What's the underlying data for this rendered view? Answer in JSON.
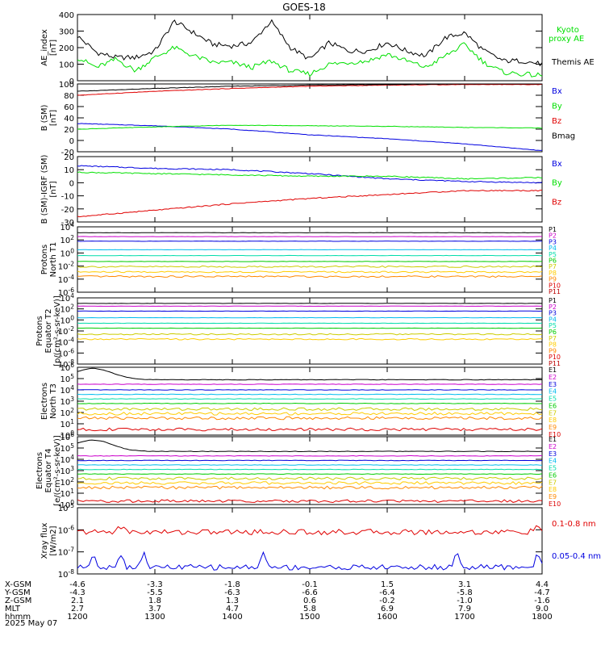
{
  "title": "GOES-18",
  "colors": {
    "black": "#000000",
    "green": "#00e000",
    "blue": "#0000e0",
    "red": "#e00000"
  },
  "xaxis": {
    "rows": [
      {
        "label": "X-GSM",
        "values": [
          "-4.6",
          "-3.3",
          "-1.8",
          "-0.1",
          "1.5",
          "3.1",
          "4.4"
        ]
      },
      {
        "label": "Y-GSM",
        "values": [
          "-4.3",
          "-5.5",
          "-6.3",
          "-6.6",
          "-6.4",
          "-5.8",
          "-4.7"
        ]
      },
      {
        "label": "Z-GSM",
        "values": [
          "2.1",
          "1.8",
          "1.3",
          "0.6",
          "-0.2",
          "-1.0",
          "-1.6"
        ]
      },
      {
        "label": "MLT",
        "values": [
          "2.7",
          "3.7",
          "4.7",
          "5.8",
          "6.9",
          "7.9",
          "9.0"
        ]
      },
      {
        "label": "hhmm",
        "values": [
          "1200",
          "1300",
          "1400",
          "1500",
          "1600",
          "1700",
          "1800"
        ]
      }
    ],
    "date": "2025 May 07"
  },
  "chart_data": [
    {
      "id": "ae",
      "type": "line",
      "ylabel": [
        "AE_index",
        "[nT]"
      ],
      "ylim": [
        0,
        400
      ],
      "yticks": [
        "0",
        "100",
        "200",
        "300",
        "400"
      ],
      "x": [
        12.0,
        12.25,
        12.5,
        12.75,
        13.0,
        13.25,
        13.5,
        13.75,
        14.0,
        14.25,
        14.5,
        14.75,
        15.0,
        15.25,
        15.5,
        15.75,
        16.0,
        16.25,
        16.5,
        16.75,
        17.0,
        17.25,
        17.5,
        17.75,
        18.0
      ],
      "series": [
        {
          "name": "Themis AE",
          "color": "black",
          "values": [
            270,
            170,
            140,
            140,
            180,
            360,
            290,
            220,
            210,
            230,
            360,
            200,
            130,
            230,
            180,
            180,
            230,
            180,
            150,
            260,
            290,
            180,
            120,
            120,
            100
          ]
        },
        {
          "name": "Kyoto proxy AE",
          "color": "green",
          "values": [
            140,
            80,
            130,
            60,
            140,
            200,
            150,
            110,
            110,
            80,
            120,
            60,
            40,
            100,
            110,
            120,
            160,
            120,
            80,
            150,
            220,
            110,
            50,
            40,
            30
          ]
        }
      ]
    },
    {
      "id": "bsm",
      "type": "line",
      "ylabel": [
        "B (SM)",
        "[nT]"
      ],
      "ylim": [
        -20,
        100
      ],
      "yticks": [
        "-20",
        "0",
        "20",
        "40",
        "60",
        "80",
        "100"
      ],
      "x": [
        12,
        13,
        14,
        15,
        16,
        17,
        18
      ],
      "series": [
        {
          "name": "Bx",
          "color": "blue",
          "values": [
            30,
            26,
            20,
            10,
            3,
            -6,
            -18
          ]
        },
        {
          "name": "By",
          "color": "green",
          "values": [
            20,
            24,
            27,
            26,
            25,
            23,
            22
          ]
        },
        {
          "name": "Bz",
          "color": "red",
          "values": [
            80,
            87,
            92,
            96,
            98,
            99,
            99
          ]
        },
        {
          "name": "Bmag",
          "color": "black",
          "values": [
            87,
            92,
            96,
            98,
            99,
            100,
            102
          ]
        }
      ]
    },
    {
      "id": "bigrf",
      "type": "line",
      "ylabel": [
        "B (SM)-IGRF (SM)",
        "[nT]"
      ],
      "ylim": [
        -30,
        20
      ],
      "yticks": [
        "-30",
        "-20",
        "-10",
        "0",
        "10",
        "20"
      ],
      "x": [
        12,
        13,
        14,
        15,
        16,
        17,
        18
      ],
      "series": [
        {
          "name": "Bx",
          "color": "blue",
          "values": [
            13,
            11,
            10,
            7,
            3,
            1,
            0
          ]
        },
        {
          "name": "By",
          "color": "green",
          "values": [
            8,
            7,
            6,
            5,
            5,
            3,
            4
          ]
        },
        {
          "name": "Bz",
          "color": "red",
          "values": [
            -26,
            -21,
            -16,
            -12,
            -9,
            -6,
            -6
          ]
        }
      ]
    },
    {
      "id": "pn",
      "type": "line",
      "ylabel": [
        "Protons",
        "North T1"
      ],
      "log": true,
      "ylim": [
        -6,
        4
      ],
      "yticks": [
        "10<sup>-6</sup>",
        "10<sup>-4</sup>",
        "10<sup>-2</sup>",
        "10<sup>0</sup>",
        "10<sup>2</sup>",
        "10<sup>4</sup>"
      ],
      "series": [
        {
          "name": "P1",
          "color": "#000000",
          "log10": 3.1
        },
        {
          "name": "P2",
          "color": "#cc00cc",
          "log10": 2.5
        },
        {
          "name": "P3",
          "color": "#0000dd",
          "log10": 1.8
        },
        {
          "name": "P4",
          "color": "#00bbee",
          "log10": 0.5
        },
        {
          "name": "P5",
          "color": "#00ddaa",
          "log10": -0.4
        },
        {
          "name": "P6",
          "color": "#00cc00",
          "log10": -1.3
        },
        {
          "name": "P7",
          "color": "#cccc00",
          "log10": -2.1
        },
        {
          "name": "P8",
          "color": "#ffcc00",
          "log10": -2.9
        },
        {
          "name": "P9",
          "color": "#ff8800",
          "log10": -3.6
        },
        {
          "name": "P10",
          "color": "#dd0000",
          "log10": -9
        },
        {
          "name": "P11",
          "color": "#bb0000",
          "log10": -9
        }
      ]
    },
    {
      "id": "pe",
      "type": "line",
      "ylabel": [
        "Protons",
        "Equator T2",
        "[p/(cm²-s-sr-keV)]"
      ],
      "log": true,
      "ylim": [
        -8,
        4
      ],
      "yticks": [
        "10<sup>-8</sup>",
        "10<sup>-6</sup>",
        "10<sup>-4</sup>",
        "10<sup>-2</sup>",
        "10<sup>0</sup>",
        "10<sup>2</sup>",
        "10<sup>4</sup>"
      ],
      "series": [
        {
          "name": "P1",
          "color": "#000000",
          "log10": 3.0
        },
        {
          "name": "P2",
          "color": "#cc00cc",
          "log10": 2.5
        },
        {
          "name": "P3",
          "color": "#0000dd",
          "log10": 1.6
        },
        {
          "name": "P4",
          "color": "#00bbee",
          "log10": 0.4
        },
        {
          "name": "P5",
          "color": "#00ddaa",
          "log10": -0.6
        },
        {
          "name": "P6",
          "color": "#00cc00",
          "log10": -1.5
        },
        {
          "name": "P7",
          "color": "#cccc00",
          "log10": -2.6
        },
        {
          "name": "P8",
          "color": "#ffcc00",
          "log10": -3.5
        },
        {
          "name": "P9",
          "color": "#ff8800",
          "log10": -9
        },
        {
          "name": "P10",
          "color": "#dd0000",
          "log10": -9
        },
        {
          "name": "P11",
          "color": "#bb0000",
          "log10": -9
        }
      ]
    },
    {
      "id": "en",
      "type": "line",
      "ylabel": [
        "Electrons",
        "North T3"
      ],
      "log": true,
      "ylim": [
        0,
        6
      ],
      "yticks": [
        "10<sup>0</sup>",
        "10<sup>1</sup>",
        "10<sup>2</sup>",
        "10<sup>3</sup>",
        "10<sup>4</sup>",
        "10<sup>5</sup>",
        "10<sup>6</sup>"
      ],
      "series": [
        {
          "name": "E1",
          "color": "#000000",
          "log10": 4.9
        },
        {
          "name": "E2",
          "color": "#cc00cc",
          "log10": 4.5
        },
        {
          "name": "E3",
          "color": "#0000dd",
          "log10": 4.0
        },
        {
          "name": "E4",
          "color": "#00bbee",
          "log10": 3.6
        },
        {
          "name": "E5",
          "color": "#00ddaa",
          "log10": 3.2
        },
        {
          "name": "E6",
          "color": "#00cc00",
          "log10": 2.8
        },
        {
          "name": "E7",
          "color": "#cccc00",
          "log10": 2.3
        },
        {
          "name": "E8",
          "color": "#ffcc00",
          "log10": 1.9
        },
        {
          "name": "E9",
          "color": "#ff8800",
          "log10": 1.5
        },
        {
          "name": "E10",
          "color": "#dd0000",
          "log10": 0.5
        }
      ]
    },
    {
      "id": "ee",
      "type": "line",
      "ylabel": [
        "Electrons",
        "Equator T4",
        "[e/(cm²-s-sr-keV)]"
      ],
      "log": true,
      "ylim": [
        0,
        6
      ],
      "yticks": [
        "10<sup>0</sup>",
        "10<sup>1</sup>",
        "10<sup>2</sup>",
        "10<sup>3</sup>",
        "10<sup>4</sup>",
        "10<sup>5</sup>",
        "10<sup>6</sup>"
      ],
      "series": [
        {
          "name": "E1",
          "color": "#000000",
          "log10": 4.7
        },
        {
          "name": "E2",
          "color": "#cc00cc",
          "log10": 4.3
        },
        {
          "name": "E3",
          "color": "#0000dd",
          "log10": 3.9
        },
        {
          "name": "E4",
          "color": "#00bbee",
          "log10": 3.5
        },
        {
          "name": "E5",
          "color": "#00ddaa",
          "log10": 3.1
        },
        {
          "name": "E6",
          "color": "#00cc00",
          "log10": 2.7
        },
        {
          "name": "E7",
          "color": "#cccc00",
          "log10": 2.3
        },
        {
          "name": "E8",
          "color": "#ffcc00",
          "log10": 1.9
        },
        {
          "name": "E9",
          "color": "#ff8800",
          "log10": 1.5
        },
        {
          "name": "E10",
          "color": "#dd0000",
          "log10": 0.3
        }
      ]
    },
    {
      "id": "xray",
      "type": "line",
      "ylabel": [
        "Xray flux",
        "[W/m2]"
      ],
      "log": true,
      "ylim": [
        -8,
        -5
      ],
      "yticks": [
        "10<sup>-8</sup>",
        "10<sup>-7</sup>",
        "10<sup>-6</sup>",
        "10<sup>-5</sup>"
      ],
      "series": [
        {
          "name": "0.1-0.8 nm",
          "color": "red",
          "log10": -6.1
        },
        {
          "name": "0.05-0.4 nm",
          "color": "blue",
          "log10": -7.7
        }
      ]
    }
  ]
}
